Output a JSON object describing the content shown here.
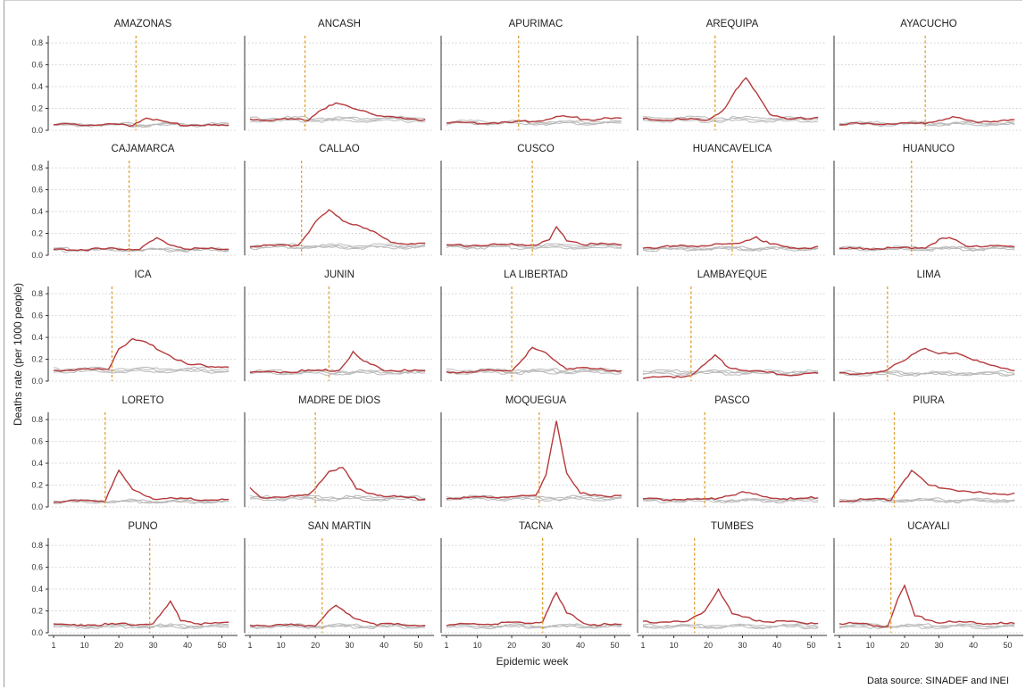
{
  "chart_data": {
    "type": "line",
    "xlabel": "Epidemic week",
    "ylabel": "Deaths rate (per 1000 people)",
    "source": "Data source: SINADEF and INEI",
    "xlim": [
      1,
      53
    ],
    "ylim": [
      0,
      0.85
    ],
    "x_ticks": [
      1,
      10,
      20,
      30,
      40,
      50
    ],
    "y_ticks": [
      "0.0",
      "0.2",
      "0.4",
      "0.6",
      "0.8"
    ],
    "y_tick_values": [
      0,
      0.2,
      0.4,
      0.6,
      0.8
    ],
    "grid": "horizontal dotted",
    "colors": {
      "series_2020": "#b5393b",
      "baseline_years": "#b9b9b9",
      "first_case_line": "#e0a030"
    },
    "panels": [
      {
        "name": "AMAZONAS",
        "vline": 25,
        "base": 0.05,
        "points": [
          [
            1,
            0.05
          ],
          [
            24,
            0.05
          ],
          [
            28,
            0.12
          ],
          [
            32,
            0.08
          ],
          [
            38,
            0.05
          ],
          [
            52,
            0.04
          ]
        ]
      },
      {
        "name": "ANCASH",
        "vline": 17,
        "base": 0.1,
        "points": [
          [
            1,
            0.1
          ],
          [
            18,
            0.1
          ],
          [
            22,
            0.2
          ],
          [
            26,
            0.24
          ],
          [
            32,
            0.2
          ],
          [
            40,
            0.12
          ],
          [
            52,
            0.1
          ]
        ]
      },
      {
        "name": "APURIMAC",
        "vline": 22,
        "base": 0.07,
        "points": [
          [
            1,
            0.07
          ],
          [
            20,
            0.07
          ],
          [
            30,
            0.1
          ],
          [
            35,
            0.13
          ],
          [
            42,
            0.1
          ],
          [
            52,
            0.11
          ]
        ]
      },
      {
        "name": "AREQUIPA",
        "vline": 22,
        "base": 0.1,
        "points": [
          [
            1,
            0.1
          ],
          [
            20,
            0.1
          ],
          [
            25,
            0.2
          ],
          [
            28,
            0.36
          ],
          [
            31,
            0.48
          ],
          [
            34,
            0.35
          ],
          [
            38,
            0.15
          ],
          [
            43,
            0.1
          ],
          [
            52,
            0.12
          ]
        ]
      },
      {
        "name": "AYACUCHO",
        "vline": 26,
        "base": 0.06,
        "points": [
          [
            1,
            0.06
          ],
          [
            25,
            0.06
          ],
          [
            34,
            0.12
          ],
          [
            40,
            0.08
          ],
          [
            52,
            0.09
          ]
        ]
      },
      {
        "name": "CAJAMARCA",
        "vline": 23,
        "base": 0.05,
        "points": [
          [
            1,
            0.05
          ],
          [
            26,
            0.06
          ],
          [
            31,
            0.15
          ],
          [
            35,
            0.1
          ],
          [
            40,
            0.06
          ],
          [
            52,
            0.06
          ]
        ]
      },
      {
        "name": "CALLAO",
        "vline": 16,
        "base": 0.08,
        "points": [
          [
            1,
            0.08
          ],
          [
            15,
            0.09
          ],
          [
            20,
            0.3
          ],
          [
            24,
            0.41
          ],
          [
            28,
            0.32
          ],
          [
            34,
            0.26
          ],
          [
            42,
            0.12
          ],
          [
            52,
            0.1
          ]
        ]
      },
      {
        "name": "CUSCO",
        "vline": 26,
        "base": 0.08,
        "points": [
          [
            1,
            0.09
          ],
          [
            28,
            0.1
          ],
          [
            31,
            0.14
          ],
          [
            33,
            0.25
          ],
          [
            36,
            0.14
          ],
          [
            42,
            0.1
          ],
          [
            52,
            0.1
          ]
        ]
      },
      {
        "name": "HUANCAVELICA",
        "vline": 27,
        "base": 0.06,
        "points": [
          [
            1,
            0.07
          ],
          [
            28,
            0.1
          ],
          [
            34,
            0.17
          ],
          [
            38,
            0.1
          ],
          [
            44,
            0.07
          ],
          [
            52,
            0.07
          ]
        ]
      },
      {
        "name": "HUANUCO",
        "vline": 22,
        "base": 0.06,
        "points": [
          [
            1,
            0.06
          ],
          [
            26,
            0.07
          ],
          [
            30,
            0.14
          ],
          [
            33,
            0.16
          ],
          [
            38,
            0.09
          ],
          [
            52,
            0.08
          ]
        ]
      },
      {
        "name": "ICA",
        "vline": 18,
        "base": 0.1,
        "points": [
          [
            1,
            0.1
          ],
          [
            17,
            0.11
          ],
          [
            20,
            0.3
          ],
          [
            24,
            0.38
          ],
          [
            28,
            0.35
          ],
          [
            34,
            0.25
          ],
          [
            40,
            0.15
          ],
          [
            52,
            0.13
          ]
        ]
      },
      {
        "name": "JUNIN",
        "vline": 24,
        "base": 0.08,
        "points": [
          [
            1,
            0.08
          ],
          [
            27,
            0.1
          ],
          [
            31,
            0.26
          ],
          [
            34,
            0.18
          ],
          [
            40,
            0.1
          ],
          [
            52,
            0.09
          ]
        ]
      },
      {
        "name": "LA LIBERTAD",
        "vline": 20,
        "base": 0.09,
        "points": [
          [
            1,
            0.08
          ],
          [
            20,
            0.1
          ],
          [
            23,
            0.2
          ],
          [
            26,
            0.3
          ],
          [
            30,
            0.25
          ],
          [
            36,
            0.12
          ],
          [
            52,
            0.1
          ]
        ]
      },
      {
        "name": "LAMBAYEQUE",
        "vline": 15,
        "base": 0.08,
        "points": [
          [
            1,
            0.03
          ],
          [
            15,
            0.05
          ],
          [
            19,
            0.15
          ],
          [
            22,
            0.23
          ],
          [
            26,
            0.13
          ],
          [
            35,
            0.08
          ],
          [
            45,
            0.06
          ],
          [
            52,
            0.07
          ]
        ]
      },
      {
        "name": "LIMA",
        "vline": 15,
        "base": 0.07,
        "points": [
          [
            1,
            0.07
          ],
          [
            14,
            0.08
          ],
          [
            20,
            0.2
          ],
          [
            25,
            0.3
          ],
          [
            30,
            0.25
          ],
          [
            35,
            0.26
          ],
          [
            44,
            0.15
          ],
          [
            52,
            0.1
          ]
        ]
      },
      {
        "name": "LORETO",
        "vline": 16,
        "base": 0.05,
        "points": [
          [
            1,
            0.05
          ],
          [
            16,
            0.06
          ],
          [
            18,
            0.2
          ],
          [
            20,
            0.33
          ],
          [
            24,
            0.15
          ],
          [
            30,
            0.08
          ],
          [
            52,
            0.06
          ]
        ]
      },
      {
        "name": "MADRE DE DIOS",
        "vline": 20,
        "base": 0.08,
        "points": [
          [
            1,
            0.17
          ],
          [
            4,
            0.08
          ],
          [
            10,
            0.1
          ],
          [
            18,
            0.1
          ],
          [
            24,
            0.33
          ],
          [
            28,
            0.36
          ],
          [
            32,
            0.16
          ],
          [
            40,
            0.1
          ],
          [
            52,
            0.07
          ]
        ]
      },
      {
        "name": "MOQUEGUA",
        "vline": 28,
        "base": 0.08,
        "points": [
          [
            1,
            0.08
          ],
          [
            27,
            0.1
          ],
          [
            30,
            0.3
          ],
          [
            33,
            0.8
          ],
          [
            36,
            0.3
          ],
          [
            40,
            0.12
          ],
          [
            52,
            0.1
          ]
        ]
      },
      {
        "name": "PASCO",
        "vline": 19,
        "base": 0.06,
        "points": [
          [
            1,
            0.07
          ],
          [
            20,
            0.07
          ],
          [
            30,
            0.13
          ],
          [
            36,
            0.1
          ],
          [
            45,
            0.07
          ],
          [
            52,
            0.09
          ]
        ]
      },
      {
        "name": "PIURA",
        "vline": 17,
        "base": 0.06,
        "points": [
          [
            1,
            0.06
          ],
          [
            16,
            0.07
          ],
          [
            20,
            0.25
          ],
          [
            22,
            0.33
          ],
          [
            27,
            0.2
          ],
          [
            40,
            0.13
          ],
          [
            52,
            0.12
          ]
        ]
      },
      {
        "name": "PUNO",
        "vline": 29,
        "base": 0.06,
        "points": [
          [
            1,
            0.07
          ],
          [
            30,
            0.08
          ],
          [
            33,
            0.2
          ],
          [
            35,
            0.28
          ],
          [
            38,
            0.12
          ],
          [
            44,
            0.08
          ],
          [
            52,
            0.09
          ]
        ]
      },
      {
        "name": "SAN MARTIN",
        "vline": 22,
        "base": 0.06,
        "points": [
          [
            1,
            0.07
          ],
          [
            20,
            0.07
          ],
          [
            24,
            0.2
          ],
          [
            26,
            0.24
          ],
          [
            31,
            0.14
          ],
          [
            38,
            0.08
          ],
          [
            52,
            0.07
          ]
        ]
      },
      {
        "name": "TACNA",
        "vline": 29,
        "base": 0.06,
        "points": [
          [
            1,
            0.07
          ],
          [
            29,
            0.1
          ],
          [
            31,
            0.25
          ],
          [
            33,
            0.36
          ],
          [
            36,
            0.18
          ],
          [
            42,
            0.08
          ],
          [
            52,
            0.07
          ]
        ]
      },
      {
        "name": "TUMBES",
        "vline": 16,
        "base": 0.06,
        "points": [
          [
            1,
            0.1
          ],
          [
            14,
            0.1
          ],
          [
            19,
            0.2
          ],
          [
            23,
            0.4
          ],
          [
            27,
            0.17
          ],
          [
            33,
            0.12
          ],
          [
            40,
            0.1
          ],
          [
            52,
            0.09
          ]
        ]
      },
      {
        "name": "UCAYALI",
        "vline": 16,
        "base": 0.06,
        "points": [
          [
            1,
            0.09
          ],
          [
            15,
            0.06
          ],
          [
            18,
            0.3
          ],
          [
            20,
            0.43
          ],
          [
            23,
            0.15
          ],
          [
            30,
            0.1
          ],
          [
            52,
            0.08
          ]
        ]
      }
    ]
  }
}
